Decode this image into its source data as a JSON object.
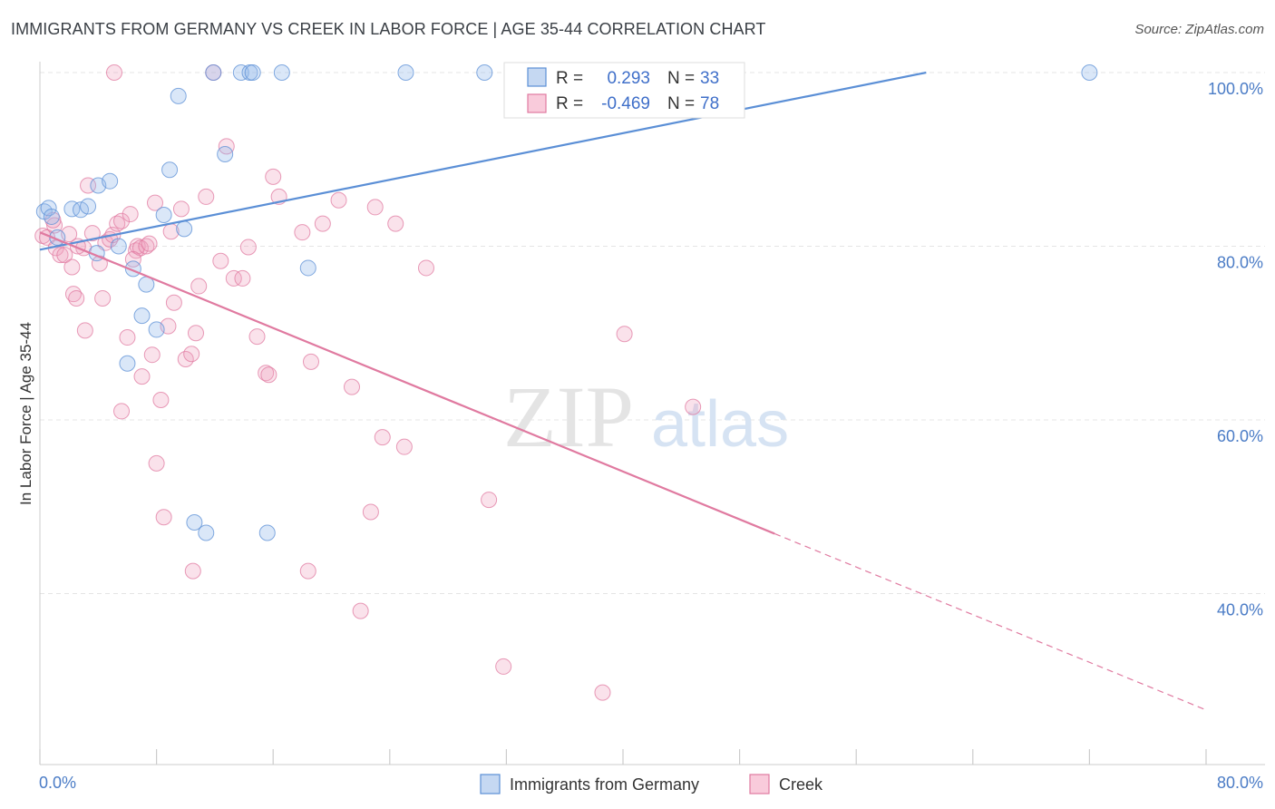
{
  "title": "IMMIGRANTS FROM GERMANY VS CREEK IN LABOR FORCE | AGE 35-44 CORRELATION CHART",
  "source": "Source: ZipAtlas.com",
  "watermark": {
    "zip": "ZIP",
    "atlas": "atlas"
  },
  "stats": [
    {
      "r_label": "R =",
      "r_value": "0.293",
      "n_label": "N =",
      "n_value": "33"
    },
    {
      "r_label": "R =",
      "r_value": "-0.469",
      "n_label": "N =",
      "n_value": "78"
    }
  ],
  "chart_data": {
    "type": "scatter",
    "title": "IMMIGRANTS FROM GERMANY VS CREEK IN LABOR FORCE | AGE 35-44 CORRELATION CHART",
    "xlabel": "",
    "ylabel": "In Labor Force | Age 35-44",
    "xlim": [
      0,
      80
    ],
    "ylim": [
      20,
      101
    ],
    "x_tick_labels": [
      "0.0%",
      "80.0%"
    ],
    "y_ticks": [
      40,
      60,
      80,
      100
    ],
    "y_tick_labels": [
      "40.0%",
      "60.0%",
      "80.0%",
      "100.0%"
    ],
    "grid": true,
    "legend_position": "bottom-center",
    "colors": {
      "germany": "#5b8fd6",
      "creek": "#e07aa0"
    },
    "series": [
      {
        "name": "Immigrants from Germany",
        "color": "#5b8fd6",
        "trend": {
          "x": [
            0,
            60.8
          ],
          "y": [
            79.6,
            100
          ],
          "dashed_to": null
        },
        "points": [
          [
            0.3,
            84.0
          ],
          [
            0.6,
            84.4
          ],
          [
            0.8,
            83.4
          ],
          [
            1.2,
            81.0
          ],
          [
            2.2,
            84.3
          ],
          [
            2.8,
            84.2
          ],
          [
            3.3,
            84.6
          ],
          [
            3.9,
            79.2
          ],
          [
            4.0,
            87.0
          ],
          [
            4.8,
            87.5
          ],
          [
            5.4,
            80.0
          ],
          [
            6.0,
            66.5
          ],
          [
            6.4,
            77.4
          ],
          [
            7.0,
            72.0
          ],
          [
            7.3,
            75.6
          ],
          [
            8.0,
            70.4
          ],
          [
            8.5,
            83.6
          ],
          [
            8.9,
            88.8
          ],
          [
            9.5,
            97.3
          ],
          [
            9.9,
            82.0
          ],
          [
            10.6,
            48.2
          ],
          [
            11.4,
            47.0
          ],
          [
            11.9,
            100
          ],
          [
            12.7,
            90.6
          ],
          [
            13.8,
            100
          ],
          [
            14.4,
            100
          ],
          [
            14.6,
            100
          ],
          [
            15.6,
            47.0
          ],
          [
            16.6,
            100
          ],
          [
            18.4,
            77.5
          ],
          [
            25.1,
            100
          ],
          [
            30.5,
            100
          ],
          [
            72.0,
            100
          ]
        ]
      },
      {
        "name": "Creek",
        "color": "#e07aa0",
        "trend": {
          "x": [
            0,
            50.4
          ],
          "y": [
            81.6,
            46.9
          ],
          "dashed_to": [
            80,
            26.6
          ]
        },
        "points": [
          [
            0.2,
            81.2
          ],
          [
            0.5,
            81.0
          ],
          [
            1.0,
            82.4
          ],
          [
            1.1,
            79.8
          ],
          [
            1.4,
            79.0
          ],
          [
            1.7,
            79.0
          ],
          [
            2.0,
            81.4
          ],
          [
            2.2,
            77.6
          ],
          [
            2.3,
            74.5
          ],
          [
            2.5,
            74.0
          ],
          [
            3.0,
            79.8
          ],
          [
            3.1,
            70.3
          ],
          [
            3.3,
            87.0
          ],
          [
            3.6,
            81.5
          ],
          [
            4.1,
            78.0
          ],
          [
            4.3,
            74.0
          ],
          [
            4.5,
            80.4
          ],
          [
            4.8,
            80.8
          ],
          [
            5.0,
            81.3
          ],
          [
            5.3,
            82.6
          ],
          [
            5.6,
            82.9
          ],
          [
            5.6,
            61.0
          ],
          [
            6.0,
            69.5
          ],
          [
            6.2,
            83.7
          ],
          [
            6.6,
            79.5
          ],
          [
            6.7,
            80.0
          ],
          [
            6.9,
            79.8
          ],
          [
            7.0,
            65.0
          ],
          [
            7.3,
            80.0
          ],
          [
            7.5,
            80.3
          ],
          [
            7.7,
            67.5
          ],
          [
            7.9,
            85.0
          ],
          [
            8.0,
            55.0
          ],
          [
            8.3,
            62.3
          ],
          [
            8.5,
            48.8
          ],
          [
            8.8,
            70.8
          ],
          [
            9.0,
            81.7
          ],
          [
            9.2,
            73.5
          ],
          [
            9.7,
            84.3
          ],
          [
            10.0,
            67.0
          ],
          [
            10.4,
            67.6
          ],
          [
            10.5,
            42.6
          ],
          [
            10.7,
            70.0
          ],
          [
            10.9,
            75.4
          ],
          [
            11.4,
            85.7
          ],
          [
            11.9,
            100
          ],
          [
            12.4,
            78.3
          ],
          [
            12.8,
            91.5
          ],
          [
            13.3,
            76.3
          ],
          [
            13.9,
            76.3
          ],
          [
            14.3,
            79.9
          ],
          [
            14.9,
            69.6
          ],
          [
            15.5,
            65.4
          ],
          [
            15.7,
            65.2
          ],
          [
            16.0,
            88.0
          ],
          [
            16.4,
            85.7
          ],
          [
            18.0,
            81.6
          ],
          [
            18.4,
            42.6
          ],
          [
            18.6,
            66.7
          ],
          [
            19.4,
            82.6
          ],
          [
            20.5,
            85.3
          ],
          [
            21.4,
            63.8
          ],
          [
            22.0,
            38.0
          ],
          [
            22.7,
            49.4
          ],
          [
            23.0,
            84.5
          ],
          [
            23.5,
            58.0
          ],
          [
            24.4,
            82.6
          ],
          [
            25.0,
            56.9
          ],
          [
            26.5,
            77.5
          ],
          [
            30.8,
            50.8
          ],
          [
            31.8,
            31.6
          ],
          [
            38.6,
            28.6
          ],
          [
            40.1,
            69.9
          ],
          [
            44.8,
            61.5
          ],
          [
            5.1,
            100
          ],
          [
            0.9,
            83.0
          ],
          [
            2.6,
            80.0
          ],
          [
            6.4,
            78.5
          ]
        ]
      }
    ]
  }
}
